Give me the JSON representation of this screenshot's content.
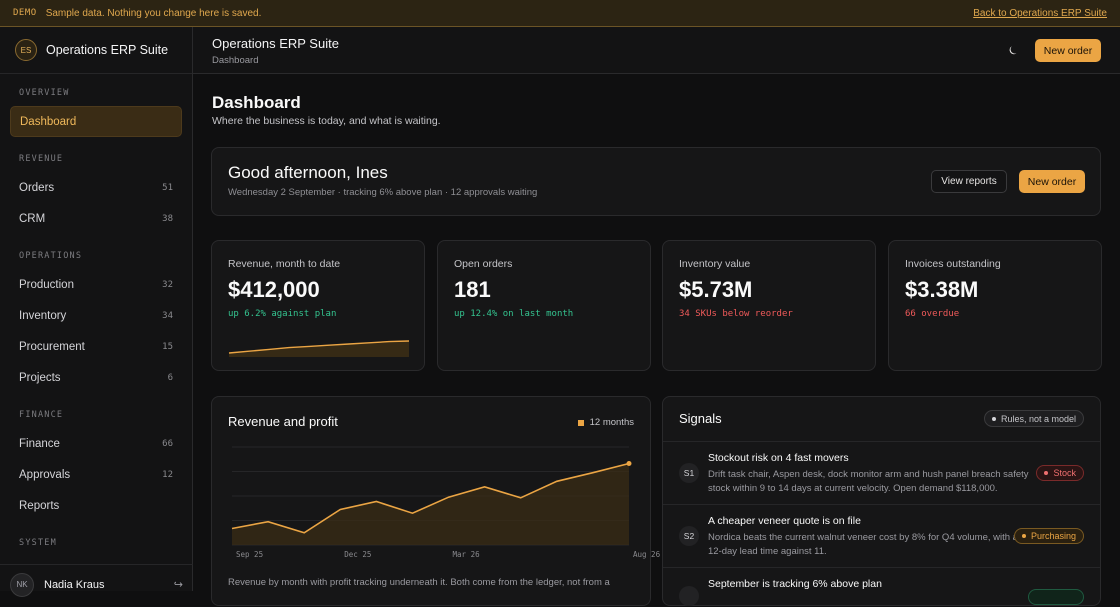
{
  "banner": {
    "tag": "DEMO",
    "message": "Sample data. Nothing you change here is saved.",
    "back_link": "Back to Operations ERP Suite"
  },
  "brand": {
    "initials": "ES",
    "name": "Operations ERP Suite"
  },
  "sidebar": {
    "sections": [
      {
        "title": "OVERVIEW",
        "items": [
          {
            "label": "Dashboard",
            "count": "",
            "active": true
          }
        ]
      },
      {
        "title": "REVENUE",
        "items": [
          {
            "label": "Orders",
            "count": "51"
          },
          {
            "label": "CRM",
            "count": "38"
          }
        ]
      },
      {
        "title": "OPERATIONS",
        "items": [
          {
            "label": "Production",
            "count": "32"
          },
          {
            "label": "Inventory",
            "count": "34"
          },
          {
            "label": "Procurement",
            "count": "15"
          },
          {
            "label": "Projects",
            "count": "6"
          }
        ]
      },
      {
        "title": "FINANCE",
        "items": [
          {
            "label": "Finance",
            "count": "66"
          },
          {
            "label": "Approvals",
            "count": "12"
          },
          {
            "label": "Reports",
            "count": ""
          }
        ]
      },
      {
        "title": "SYSTEM",
        "items": []
      }
    ]
  },
  "user": {
    "initials": "NK",
    "name": "Nadia Kraus",
    "action_glyph": "↪"
  },
  "topbar": {
    "title": "Operations ERP Suite",
    "breadcrumb": "Dashboard",
    "theme_icon": "moon-icon",
    "new_order": "New order"
  },
  "page": {
    "title": "Dashboard",
    "subtitle": "Where the business is today, and what is waiting."
  },
  "greeting": {
    "title": "Good afternoon, Ines",
    "subtitle": "Wednesday 2 September · tracking 6% above plan · 12 approvals waiting",
    "view_reports": "View reports",
    "new_order": "New order"
  },
  "kpis": [
    {
      "label": "Revenue, month to date",
      "value": "$412,000",
      "note": "up 6.2% against plan",
      "trend": "up",
      "sparkline": [
        0.0,
        0.15,
        0.3,
        0.45,
        0.55,
        0.65,
        0.75,
        0.85,
        0.95,
        1.0
      ]
    },
    {
      "label": "Open orders",
      "value": "181",
      "note": "up 12.4% on last month",
      "trend": "up"
    },
    {
      "label": "Inventory value",
      "value": "$5.73M",
      "note": "34 SKUs below reorder",
      "trend": "down"
    },
    {
      "label": "Invoices outstanding",
      "value": "$3.38M",
      "note": "66 overdue",
      "trend": "down"
    }
  ],
  "revenue_chart": {
    "title": "Revenue and profit",
    "legend": "12 months",
    "caption": "Revenue by month with profit tracking underneath it. Both come from the ledger, not from a",
    "colors": {
      "line": "#eba544",
      "area": "#3a2c15",
      "grid": "#262628"
    }
  },
  "chart_data": {
    "type": "area",
    "title": "Revenue and profit",
    "x": [
      "Sep 25",
      "Oct 25",
      "Nov 25",
      "Dec 25",
      "Jan 26",
      "Feb 26",
      "Mar 26",
      "Apr 26",
      "May 26",
      "Jun 26",
      "Jul 26",
      "Aug 26"
    ],
    "x_tick_labels": [
      "Sep 25",
      "Dec 25",
      "Mar 26",
      "Aug 26"
    ],
    "series": [
      {
        "values": [
          27,
          38,
          20,
          58,
          71,
          52,
          78,
          95,
          77,
          104,
          118,
          133
        ]
      }
    ],
    "ylim": [
      0,
      160
    ],
    "grid": true,
    "legend_position": "top-right"
  },
  "signals": {
    "title": "Signals",
    "badge": "Rules, not a model",
    "items": [
      {
        "id": "S1",
        "title": "Stockout risk on 4 fast movers",
        "description": "Drift task chair, Aspen desk, dock monitor arm and hush panel breach safety stock within 9 to 14 days at current velocity. Open demand $118,000.",
        "tag": "Stock",
        "tone": "red"
      },
      {
        "id": "S2",
        "title": "A cheaper veneer quote is on file",
        "description": "Nordica beats the current walnut veneer cost by 8% for Q4 volume, with a 12-day lead time against 11.",
        "tag": "Purchasing",
        "tone": "amber"
      },
      {
        "id": "S3",
        "title": "September is tracking 6% above plan",
        "description": "",
        "tag": "",
        "tone": "green"
      }
    ]
  }
}
